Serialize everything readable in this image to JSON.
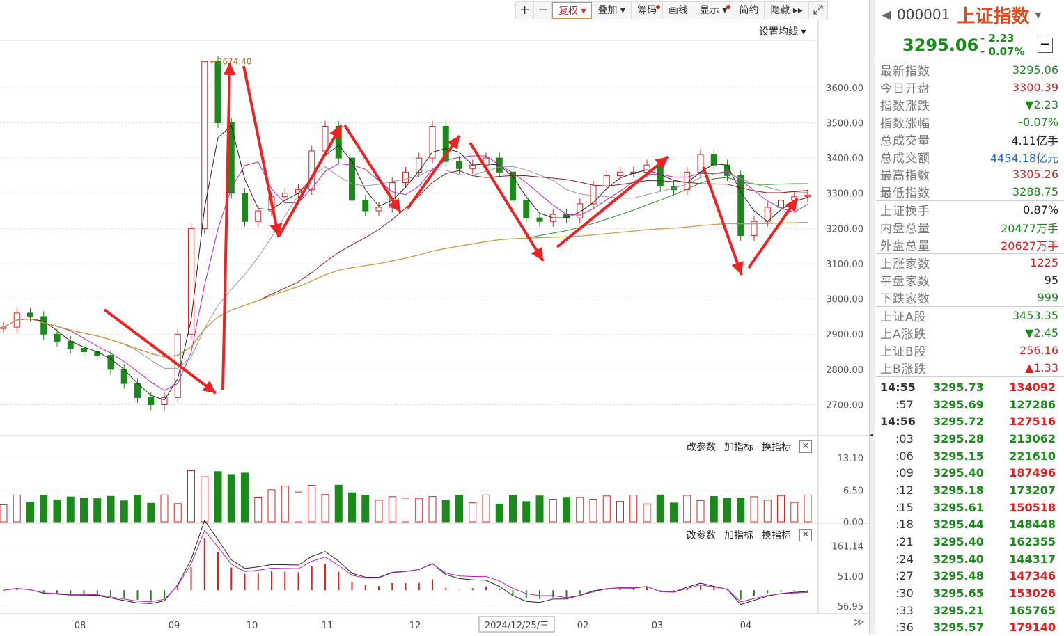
{
  "toolbar": {
    "plus": "+",
    "minus": "−",
    "items": [
      {
        "label": "复权 ▾",
        "active": true,
        "dot": false
      },
      {
        "label": "叠加 ▾",
        "active": false,
        "dot": false
      },
      {
        "label": "筹码",
        "active": false,
        "dot": true
      },
      {
        "label": "画线",
        "active": false,
        "dot": false
      },
      {
        "label": "显示 ▾",
        "active": false,
        "dot": true
      },
      {
        "label": "简约",
        "active": false,
        "dot": false
      },
      {
        "label": "隐藏 ▸▸",
        "active": false,
        "dot": false
      }
    ],
    "expand": "⤢"
  },
  "set_ma_label": "设置均线 ▾",
  "sub_tools": {
    "param": "改参数",
    "add": "加指标",
    "swap": "换指标",
    "close": "✕"
  },
  "chart_data": [
    {
      "type": "candlestick",
      "title": "",
      "y_ticks": [
        "3600.00",
        "3500.00",
        "3400.00",
        "3300.00",
        "3200.00",
        "3100.00",
        "3000.00",
        "2900.00",
        "2800.00",
        "2700.00"
      ],
      "ylim": [
        2620,
        3730
      ],
      "high_annotation": "3674.40",
      "x_labels": [
        "08",
        "09",
        "10",
        "11",
        "12",
        "2024/12/25/三",
        "02",
        "03",
        "04"
      ],
      "close_series": [
        2920,
        2960,
        2950,
        2900,
        2880,
        2860,
        2850,
        2840,
        2800,
        2760,
        2720,
        2700,
        2720,
        2900,
        3200,
        3674,
        3500,
        3300,
        3220,
        3250,
        3290,
        3300,
        3310,
        3420,
        3490,
        3400,
        3280,
        3250,
        3260,
        3330,
        3360,
        3400,
        3490,
        3390,
        3370,
        3380,
        3400,
        3360,
        3280,
        3230,
        3220,
        3240,
        3230,
        3270,
        3320,
        3350,
        3360,
        3360,
        3380,
        3320,
        3310,
        3360,
        3410,
        3380,
        3350,
        3180,
        3220,
        3260,
        3280,
        3290,
        3295
      ]
    },
    {
      "type": "bar",
      "title": "",
      "y_ticks": [
        "13.10",
        "6.50",
        "0.00"
      ],
      "ylim": [
        0,
        13.5
      ]
    },
    {
      "type": "line",
      "title": "",
      "y_ticks": [
        "161.14",
        "51.00",
        "-56.95"
      ],
      "ylim": [
        -60,
        165
      ]
    }
  ],
  "quote": {
    "code": "000001",
    "name": "上证指数",
    "price": "3295.06",
    "change": "- 2.23",
    "change_pct": "- 0.07%",
    "nav_left": "◀",
    "nav_right": "▾",
    "collapse": "−"
  },
  "stats1": [
    {
      "label": "最新指数",
      "value": "3295.06",
      "color": "g"
    },
    {
      "label": "今日开盘",
      "value": "3300.39",
      "color": "r"
    },
    {
      "label": "指数涨跌",
      "value": "▼2.23",
      "color": "g"
    },
    {
      "label": "指数涨幅",
      "value": "-0.07%",
      "color": "g"
    },
    {
      "label": "总成交量",
      "value": "4.11亿手",
      "color": "k"
    },
    {
      "label": "总成交额",
      "value": "4454.18亿元",
      "color": "b"
    },
    {
      "label": "最高指数",
      "value": "3305.26",
      "color": "r"
    },
    {
      "label": "最低指数",
      "value": "3288.75",
      "color": "g"
    }
  ],
  "stats2": [
    {
      "label": "上证换手",
      "value": "0.87%",
      "color": "k"
    },
    {
      "label": "内盘总量",
      "value": "20477万手",
      "color": "g"
    },
    {
      "label": "外盘总量",
      "value": "20627万手",
      "color": "r"
    }
  ],
  "stats3": [
    {
      "label": "上涨家数",
      "value": "1225",
      "color": "r"
    },
    {
      "label": "平盘家数",
      "value": "95",
      "color": "k"
    },
    {
      "label": "下跌家数",
      "value": "999",
      "color": "g"
    }
  ],
  "stats4": [
    {
      "label": "上证A股",
      "value": "3453.35",
      "color": "g"
    },
    {
      "label": "上A涨跌",
      "value": "▼2.45",
      "color": "g"
    },
    {
      "label": "上证B股",
      "value": "256.16",
      "color": "r"
    },
    {
      "label": "上B涨跌",
      "value": "▲1.33",
      "color": "r"
    }
  ],
  "ticks": [
    {
      "time": "14:55",
      "price": "3295.73",
      "vol": "134092",
      "vcolor": "r",
      "major": true
    },
    {
      "time": ":57",
      "price": "3295.69",
      "vol": "127286",
      "vcolor": "g",
      "major": false
    },
    {
      "time": "14:56",
      "price": "3295.72",
      "vol": "127516",
      "vcolor": "r",
      "major": true
    },
    {
      "time": ":03",
      "price": "3295.28",
      "vol": "213062",
      "vcolor": "g",
      "major": false
    },
    {
      "time": ":06",
      "price": "3295.15",
      "vol": "221610",
      "vcolor": "g",
      "major": false
    },
    {
      "time": ":09",
      "price": "3295.40",
      "vol": "187496",
      "vcolor": "r",
      "major": false
    },
    {
      "time": ":12",
      "price": "3295.18",
      "vol": "173207",
      "vcolor": "g",
      "major": false
    },
    {
      "time": ":15",
      "price": "3295.61",
      "vol": "150518",
      "vcolor": "r",
      "major": false
    },
    {
      "time": ":18",
      "price": "3295.44",
      "vol": "148448",
      "vcolor": "g",
      "major": false
    },
    {
      "time": ":21",
      "price": "3295.40",
      "vol": "162355",
      "vcolor": "g",
      "major": false
    },
    {
      "time": ":24",
      "price": "3295.40",
      "vol": "144317",
      "vcolor": "g",
      "major": false
    },
    {
      "time": ":27",
      "price": "3295.48",
      "vol": "147346",
      "vcolor": "r",
      "major": false
    },
    {
      "time": ":30",
      "price": "3295.65",
      "vol": "153026",
      "vcolor": "r",
      "major": false
    },
    {
      "time": ":33",
      "price": "3295.21",
      "vol": "165765",
      "vcolor": "g",
      "major": false
    },
    {
      "time": ":36",
      "price": "3295.57",
      "vol": "179140",
      "vcolor": "r",
      "major": false
    }
  ],
  "scroll_right": "≫",
  "splitter_handle": "◂"
}
